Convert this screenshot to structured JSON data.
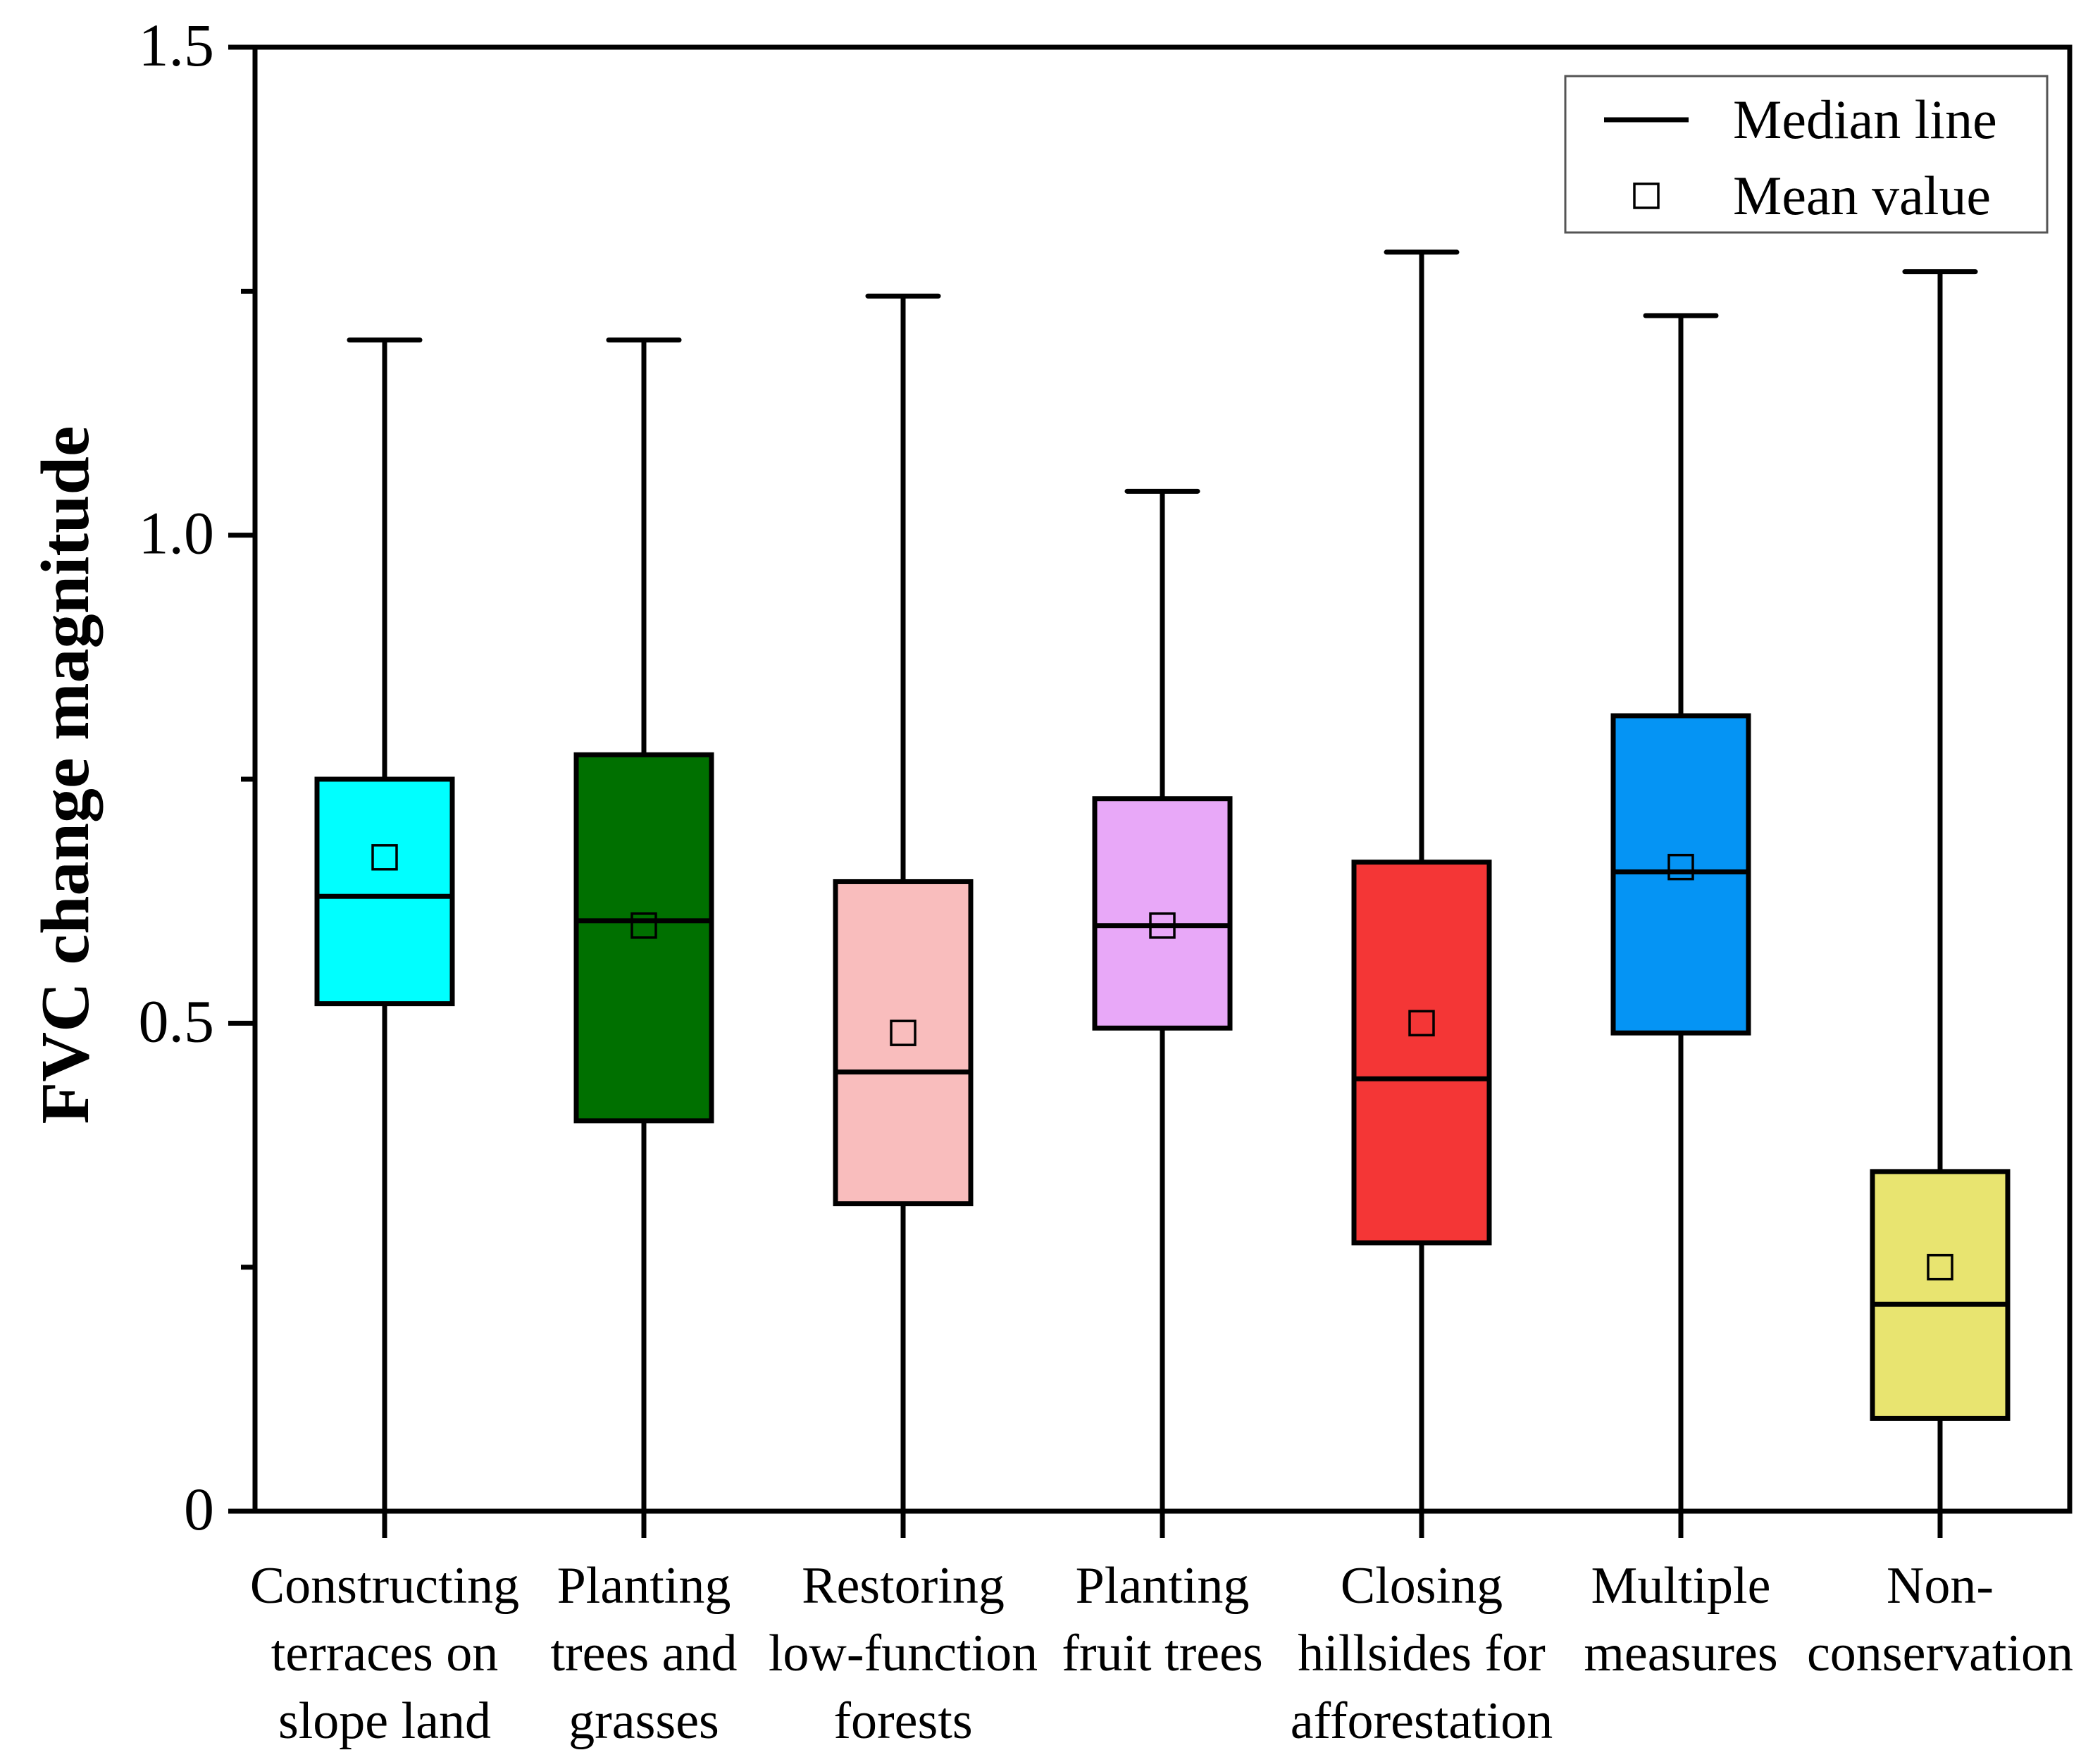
{
  "chart_data": {
    "type": "box",
    "title": "",
    "xlabel": "",
    "ylabel": "FVC change magnitude",
    "ylim": [
      0,
      1.5
    ],
    "yticks": [
      {
        "value": 0,
        "label": "0"
      },
      {
        "value": 0.5,
        "label": "0.5"
      },
      {
        "value": 1.0,
        "label": "1.0"
      },
      {
        "value": 1.5,
        "label": "1.5"
      }
    ],
    "minor_yticks": [
      0.25,
      0.75,
      1.25
    ],
    "grid": false,
    "legend": {
      "position": "top-right",
      "entries": [
        {
          "label": "Median line",
          "marker": "line"
        },
        {
          "label": "Mean value",
          "marker": "open-square"
        }
      ]
    },
    "categories": [
      {
        "label_lines": [
          "Constructing",
          "terraces on",
          "slope land"
        ],
        "color": "#00FFFF",
        "whisker_low": 0.0,
        "q1": 0.52,
        "median": 0.63,
        "q3": 0.75,
        "whisker_high": 1.2,
        "mean": 0.67
      },
      {
        "label_lines": [
          "Planting",
          "trees and",
          "grasses"
        ],
        "color": "#007000",
        "whisker_low": 0.0,
        "q1": 0.4,
        "median": 0.605,
        "q3": 0.775,
        "whisker_high": 1.2,
        "mean": 0.6
      },
      {
        "label_lines": [
          "Restoring",
          "low-function",
          "forests"
        ],
        "color": "#F9BDBD",
        "whisker_low": 0.0,
        "q1": 0.315,
        "median": 0.45,
        "q3": 0.645,
        "whisker_high": 1.245,
        "mean": 0.49
      },
      {
        "label_lines": [
          "Planting",
          "fruit trees"
        ],
        "color": "#E8A8F8",
        "whisker_low": 0.0,
        "q1": 0.495,
        "median": 0.6,
        "q3": 0.73,
        "whisker_high": 1.045,
        "mean": 0.6
      },
      {
        "label_lines": [
          "Closing",
          "hillsides for",
          "afforestation"
        ],
        "color": "#F43636",
        "whisker_low": 0.0,
        "q1": 0.275,
        "median": 0.443,
        "q3": 0.665,
        "whisker_high": 1.29,
        "mean": 0.5
      },
      {
        "label_lines": [
          "Multiple",
          "measures"
        ],
        "color": "#0594F4",
        "whisker_low": 0.0,
        "q1": 0.49,
        "median": 0.655,
        "q3": 0.815,
        "whisker_high": 1.225,
        "mean": 0.66
      },
      {
        "label_lines": [
          "Non-",
          "conservation"
        ],
        "color": "#E8E470",
        "whisker_low": 0.0,
        "q1": 0.095,
        "median": 0.212,
        "q3": 0.348,
        "whisker_high": 1.27,
        "mean": 0.25
      }
    ]
  }
}
